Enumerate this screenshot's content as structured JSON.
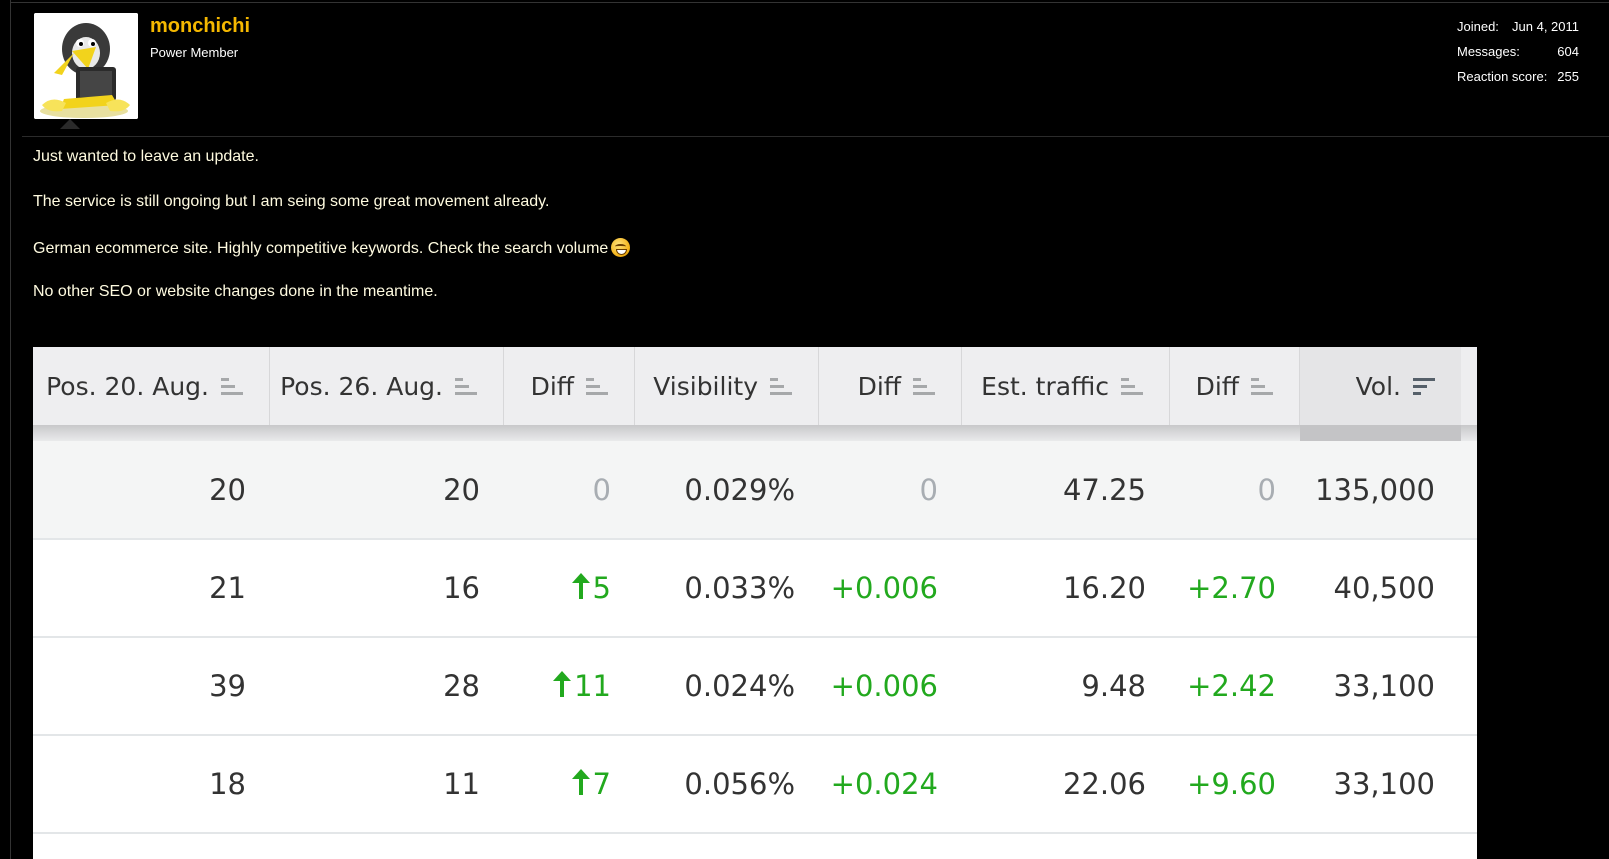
{
  "user": {
    "name": "monchichi",
    "title": "Power Member",
    "avatar_icon": "penguin-laptop-avatar",
    "stats": [
      {
        "label": "Joined:",
        "value": "Jun 4, 2011"
      },
      {
        "label": "Messages:",
        "value": "604"
      },
      {
        "label": "Reaction score:",
        "value": "255"
      }
    ]
  },
  "post": {
    "paragraphs": [
      "Just wanted to leave an update.",
      "The service is still ongoing but I am seing some great movement already.",
      "German ecommerce site. Highly competitive keywords. Check the search volume",
      "No other SEO or website changes done in the meantime."
    ],
    "emoji_icon": "grin-emoji-icon"
  },
  "table": {
    "columns": [
      "Pos. 20. Aug.",
      "Pos. 26. Aug.",
      "Diff",
      "Visibility",
      "Diff",
      "Est. traffic",
      "Diff",
      "Vol."
    ],
    "rows": [
      {
        "pos_a": "20",
        "pos_b": "20",
        "diff": "0",
        "diff_up": false,
        "visibility": "0.029%",
        "vis_diff": "0",
        "traffic": "47.25",
        "traffic_diff": "0",
        "vol": "135,000"
      },
      {
        "pos_a": "21",
        "pos_b": "16",
        "diff": "5",
        "diff_up": true,
        "visibility": "0.033%",
        "vis_diff": "+0.006",
        "traffic": "16.20",
        "traffic_diff": "+2.70",
        "vol": "40,500"
      },
      {
        "pos_a": "39",
        "pos_b": "28",
        "diff": "11",
        "diff_up": true,
        "visibility": "0.024%",
        "vis_diff": "+0.006",
        "traffic": "9.48",
        "traffic_diff": "+2.42",
        "vol": "33,100"
      },
      {
        "pos_a": "18",
        "pos_b": "11",
        "diff": "7",
        "diff_up": true,
        "visibility": "0.056%",
        "vis_diff": "+0.024",
        "traffic": "22.06",
        "traffic_diff": "+9.60",
        "vol": "33,100"
      }
    ],
    "colors": {
      "positive": "#22a91e",
      "neutral": "#a8adb2",
      "username": "#f5b800"
    }
  }
}
